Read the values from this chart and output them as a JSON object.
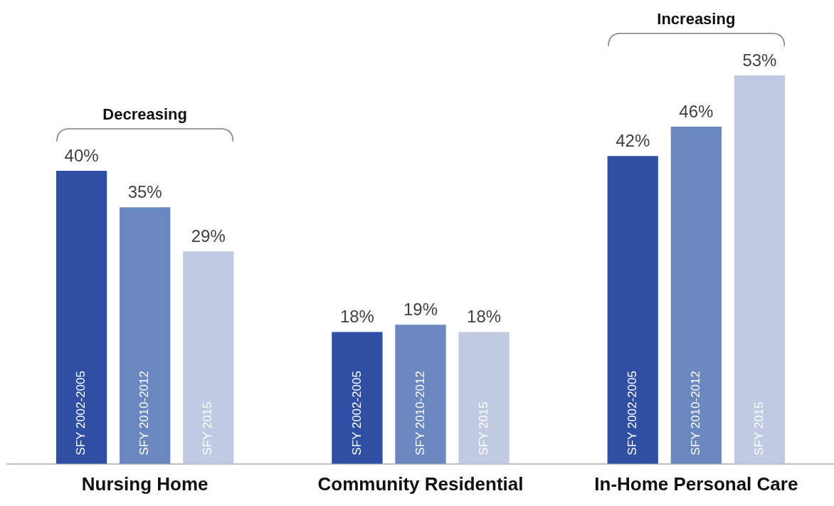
{
  "chart_data": {
    "type": "bar",
    "categories": [
      "Nursing Home",
      "Community Residential",
      "In-Home Personal Care"
    ],
    "series": [
      {
        "name": "SFY 2002-2005",
        "color": "#2e4fa3",
        "values": [
          40,
          18,
          42
        ],
        "value_labels": [
          "40%",
          "18%",
          "42%"
        ]
      },
      {
        "name": "SFY 2010-2012",
        "color": "#6b87c0",
        "values": [
          35,
          19,
          46
        ],
        "value_labels": [
          "35%",
          "19%",
          "46%"
        ]
      },
      {
        "name": "SFY 2015",
        "color": "#c1cae3",
        "values": [
          29,
          18,
          53
        ],
        "value_labels": [
          "29%",
          "18%",
          "53%"
        ]
      }
    ],
    "annotations": [
      "Decreasing",
      "Increasing"
    ],
    "legend": false,
    "grid": false
  }
}
